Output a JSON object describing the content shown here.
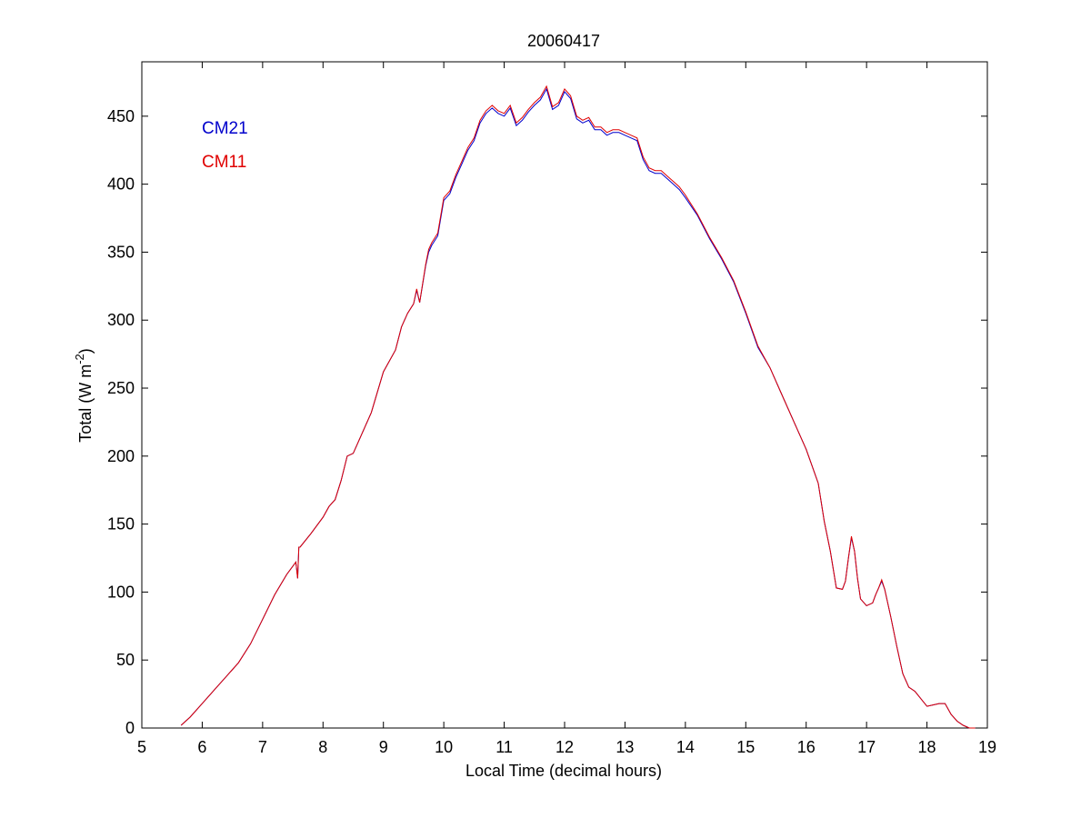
{
  "chart_data": {
    "type": "line",
    "title": "20060417",
    "xlabel": "Local Time (decimal hours)",
    "ylabel": "Total (W m",
    "ylabel_sup": "-2",
    "ylabel_end": ")",
    "xlim": [
      5,
      19
    ],
    "ylim": [
      0,
      490
    ],
    "xticks": [
      "5",
      "6",
      "7",
      "8",
      "9",
      "10",
      "11",
      "12",
      "13",
      "14",
      "15",
      "16",
      "17",
      "18",
      "19"
    ],
    "yticks": [
      "0",
      "50",
      "100",
      "150",
      "200",
      "250",
      "300",
      "350",
      "400",
      "450"
    ],
    "grid": false,
    "legend_position": "top-left",
    "series": [
      {
        "name": "CM21",
        "color": "#0000cc",
        "x": [
          5.65,
          5.8,
          6.0,
          6.2,
          6.4,
          6.6,
          6.8,
          7.0,
          7.2,
          7.4,
          7.55,
          7.58,
          7.6,
          7.62,
          7.8,
          8.0,
          8.1,
          8.2,
          8.3,
          8.4,
          8.5,
          8.6,
          8.8,
          9.0,
          9.2,
          9.3,
          9.4,
          9.5,
          9.55,
          9.6,
          9.7,
          9.75,
          9.8,
          9.9,
          10.0,
          10.1,
          10.2,
          10.3,
          10.4,
          10.5,
          10.6,
          10.7,
          10.8,
          10.9,
          11.0,
          11.1,
          11.2,
          11.3,
          11.4,
          11.5,
          11.6,
          11.7,
          11.8,
          11.9,
          12.0,
          12.1,
          12.2,
          12.3,
          12.4,
          12.5,
          12.6,
          12.7,
          12.8,
          12.9,
          13.0,
          13.1,
          13.2,
          13.3,
          13.4,
          13.5,
          13.6,
          13.7,
          13.8,
          13.9,
          14.0,
          14.2,
          14.4,
          14.6,
          14.8,
          15.0,
          15.2,
          15.4,
          15.6,
          15.8,
          16.0,
          16.2,
          16.3,
          16.4,
          16.5,
          16.6,
          16.65,
          16.7,
          16.75,
          16.8,
          16.85,
          16.9,
          17.0,
          17.1,
          17.15,
          17.2,
          17.25,
          17.3,
          17.4,
          17.5,
          17.6,
          17.7,
          17.8,
          18.0,
          18.1,
          18.2,
          18.3,
          18.4,
          18.5,
          18.6,
          18.7,
          18.8
        ],
        "y": [
          2,
          8,
          18,
          28,
          38,
          48,
          62,
          80,
          98,
          113,
          122,
          110,
          133,
          133,
          143,
          155,
          163,
          168,
          182,
          200,
          202,
          212,
          232,
          262,
          278,
          295,
          305,
          312,
          322,
          313,
          340,
          350,
          355,
          362,
          388,
          393,
          405,
          415,
          425,
          432,
          445,
          452,
          456,
          452,
          450,
          456,
          443,
          447,
          453,
          458,
          462,
          470,
          455,
          458,
          468,
          463,
          448,
          445,
          447,
          440,
          440,
          436,
          438,
          438,
          436,
          434,
          432,
          418,
          410,
          408,
          408,
          404,
          400,
          396,
          390,
          377,
          360,
          345,
          328,
          305,
          280,
          265,
          245,
          225,
          205,
          180,
          152,
          130,
          103,
          102,
          108,
          125,
          140,
          130,
          110,
          95,
          90,
          92,
          98,
          103,
          108,
          102,
          82,
          60,
          40,
          30,
          27,
          16,
          17,
          18,
          18,
          10,
          5,
          2,
          0,
          0
        ]
      },
      {
        "name": "CM11",
        "color": "#e00000",
        "x": [
          5.65,
          5.8,
          6.0,
          6.2,
          6.4,
          6.6,
          6.8,
          7.0,
          7.2,
          7.4,
          7.55,
          7.58,
          7.6,
          7.62,
          7.8,
          8.0,
          8.1,
          8.2,
          8.3,
          8.4,
          8.5,
          8.6,
          8.8,
          9.0,
          9.2,
          9.3,
          9.4,
          9.5,
          9.55,
          9.6,
          9.7,
          9.75,
          9.8,
          9.9,
          10.0,
          10.1,
          10.2,
          10.3,
          10.4,
          10.5,
          10.6,
          10.7,
          10.8,
          10.9,
          11.0,
          11.1,
          11.2,
          11.3,
          11.4,
          11.5,
          11.6,
          11.7,
          11.8,
          11.9,
          12.0,
          12.1,
          12.2,
          12.3,
          12.4,
          12.5,
          12.6,
          12.7,
          12.8,
          12.9,
          13.0,
          13.1,
          13.2,
          13.3,
          13.4,
          13.5,
          13.6,
          13.7,
          13.8,
          13.9,
          14.0,
          14.2,
          14.4,
          14.6,
          14.8,
          15.0,
          15.2,
          15.4,
          15.6,
          15.8,
          16.0,
          16.2,
          16.3,
          16.4,
          16.5,
          16.6,
          16.65,
          16.7,
          16.75,
          16.8,
          16.85,
          16.9,
          17.0,
          17.1,
          17.15,
          17.2,
          17.25,
          17.3,
          17.4,
          17.5,
          17.6,
          17.7,
          17.8,
          18.0,
          18.1,
          18.2,
          18.3,
          18.4,
          18.5,
          18.6,
          18.7,
          18.8
        ],
        "y": [
          2,
          8,
          18,
          28,
          38,
          48,
          62,
          80,
          98,
          113,
          122,
          110,
          133,
          133,
          143,
          155,
          163,
          168,
          182,
          200,
          202,
          212,
          232,
          262,
          278,
          295,
          305,
          312,
          323,
          313,
          341,
          352,
          357,
          364,
          390,
          395,
          407,
          417,
          427,
          434,
          447,
          454,
          458,
          454,
          452,
          458,
          445,
          449,
          455,
          460,
          464,
          472,
          457,
          460,
          470,
          465,
          450,
          447,
          449,
          442,
          442,
          438,
          440,
          440,
          438,
          436,
          434,
          420,
          412,
          410,
          410,
          406,
          402,
          398,
          392,
          378,
          361,
          346,
          329,
          306,
          281,
          265,
          245,
          225,
          205,
          180,
          152,
          130,
          103,
          102,
          108,
          125,
          141,
          130,
          110,
          95,
          90,
          92,
          98,
          103,
          109,
          102,
          82,
          60,
          40,
          30,
          27,
          16,
          17,
          18,
          18,
          10,
          5,
          2,
          0,
          0
        ]
      }
    ]
  }
}
